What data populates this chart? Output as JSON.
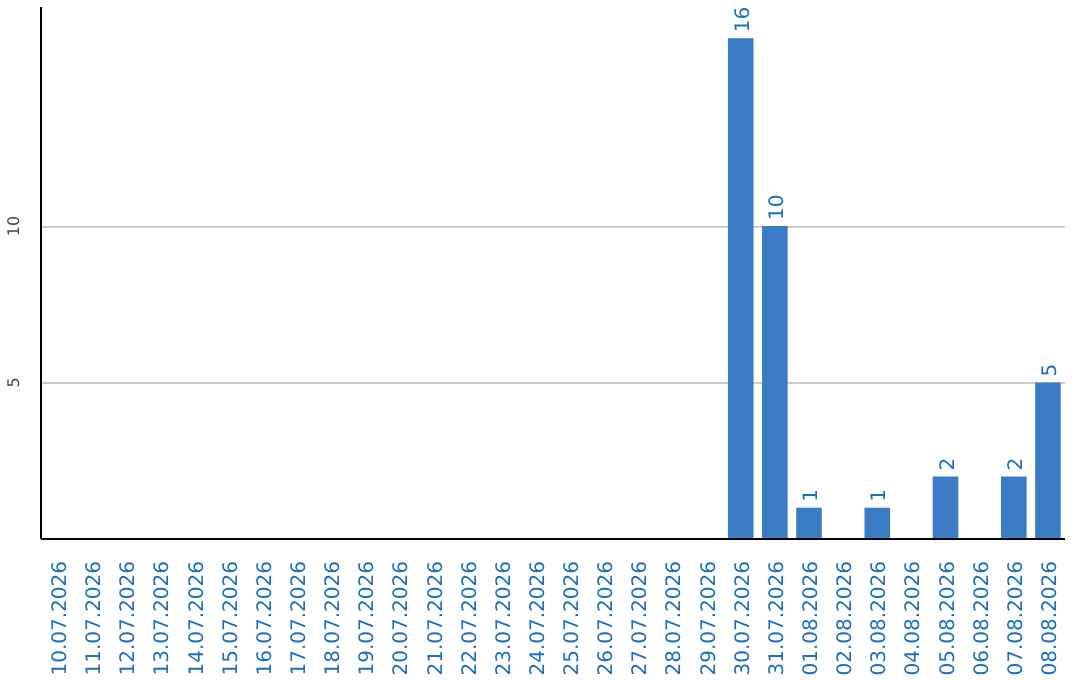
{
  "chart_data": {
    "type": "bar",
    "categories": [
      "10.07.2026",
      "11.07.2026",
      "12.07.2026",
      "13.07.2026",
      "14.07.2026",
      "15.07.2026",
      "16.07.2026",
      "17.07.2026",
      "18.07.2026",
      "19.07.2026",
      "20.07.2026",
      "21.07.2026",
      "22.07.2026",
      "23.07.2026",
      "24.07.2026",
      "25.07.2026",
      "26.07.2026",
      "27.07.2026",
      "28.07.2026",
      "29.07.2026",
      "30.07.2026",
      "31.07.2026",
      "01.08.2026",
      "02.08.2026",
      "03.08.2026",
      "04.08.2026",
      "05.08.2026",
      "06.08.2026",
      "07.08.2026",
      "08.08.2026"
    ],
    "values": [
      0,
      0,
      0,
      0,
      0,
      0,
      0,
      0,
      0,
      0,
      0,
      0,
      0,
      0,
      0,
      0,
      0,
      0,
      0,
      0,
      16,
      10,
      1,
      0,
      1,
      0,
      2,
      0,
      2,
      5
    ],
    "value_labels": [
      null,
      null,
      null,
      null,
      null,
      null,
      null,
      null,
      null,
      null,
      null,
      null,
      null,
      null,
      null,
      null,
      null,
      null,
      null,
      null,
      "16",
      "10",
      "1",
      null,
      "1",
      null,
      "2",
      null,
      "2",
      "5"
    ],
    "color": "#3a7cc4",
    "ylim": [
      0,
      17
    ],
    "yticks": [
      5,
      10
    ],
    "grid": "y"
  }
}
